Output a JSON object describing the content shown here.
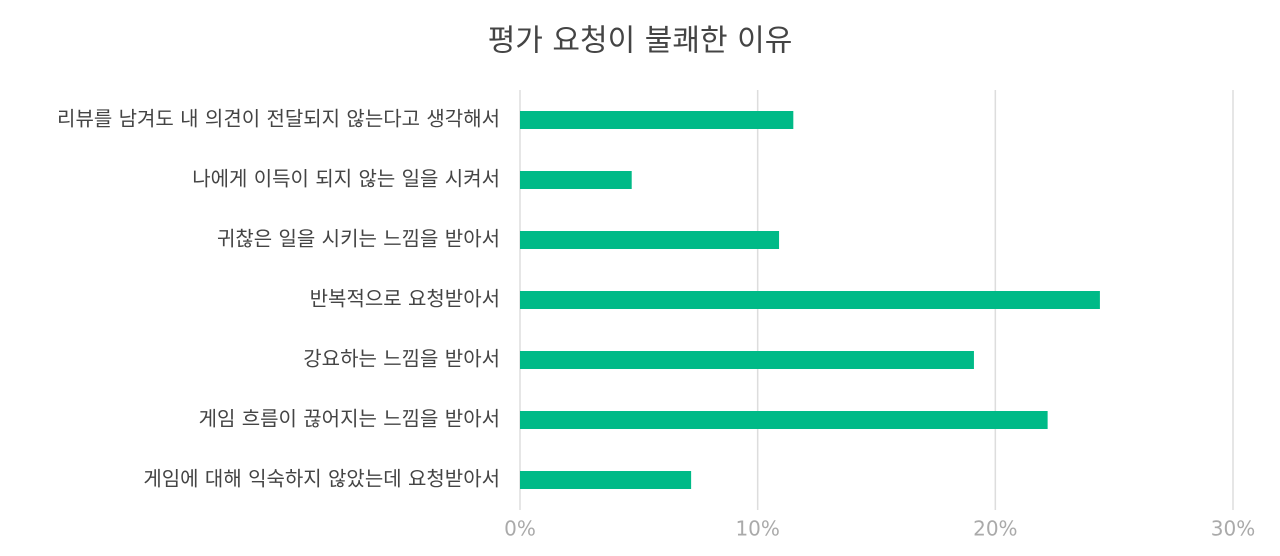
{
  "chart_data": {
    "type": "bar",
    "orientation": "horizontal",
    "title": "평가 요청이 불쾌한 이유",
    "categories": [
      "리뷰를 남겨도 내 의견이 전달되지 않는다고 생각해서",
      "나에게 이득이 되지 않는 일을 시켜서",
      "귀찮은 일을 시키는 느낌을 받아서",
      "반복적으로 요청받아서",
      "강요하는 느낌을 받아서",
      "게임 흐름이 끊어지는 느낌을 받아서",
      "게임에 대해 익숙하지 않았는데 요청받아서"
    ],
    "values": [
      11.5,
      4.7,
      10.9,
      24.4,
      19.1,
      22.2,
      7.2
    ],
    "color": "#00ba87",
    "xlim": [
      0,
      30
    ],
    "xticks": [
      {
        "value": 0,
        "label": "0%"
      },
      {
        "value": 10,
        "label": "10%"
      },
      {
        "value": 20,
        "label": "20%"
      },
      {
        "value": 30,
        "label": "30%"
      }
    ],
    "grid": true
  }
}
